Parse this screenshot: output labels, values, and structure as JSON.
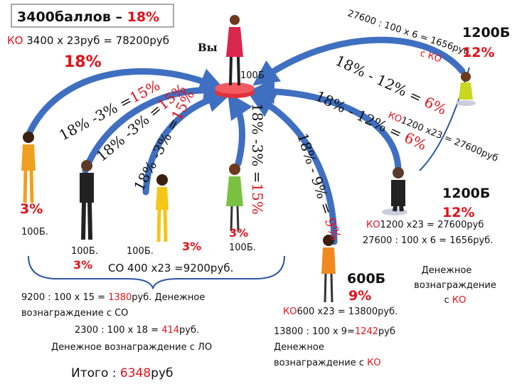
{
  "title": {
    "text": "3400баллов – ",
    "percent": "18%"
  },
  "you": {
    "label": "Вы",
    "points": "100Б"
  },
  "own_calc": {
    "ko": "КО",
    "text": " 3400 х 23руб = 78200руб",
    "percent": "18%"
  },
  "arrows": [
    {
      "calc": "18% -3% =",
      "result": "15%"
    },
    {
      "calc": "18% -3% =",
      "result": "15%"
    },
    {
      "calc": "18% -3% =",
      "result": "15%"
    },
    {
      "calc": "18% -3% =",
      "result": "15%"
    },
    {
      "calc": "18% - 9% = ",
      "result": "9%"
    },
    {
      "calc": "18% - 12% = ",
      "result": "6%"
    },
    {
      "calc": "18% - 12% = ",
      "result": "6%"
    }
  ],
  "top_right": {
    "calc": "27600 : 100 x 6 = 1656руб.",
    "note": "с КО",
    "points": "1200Б",
    "percent": "12%"
  },
  "ko_arrow": {
    "ko": "КО",
    "text": "1200 x23 = 27600руб"
  },
  "members": [
    {
      "percent": "3%",
      "points": "100Б."
    },
    {
      "points": "100Б.",
      "percent": "3%"
    },
    {
      "points": "100Б.",
      "percent": "3%"
    },
    {
      "percent": "3%",
      "points": "100Б."
    }
  ],
  "so_calc": "СО 400 х23 =9200руб.",
  "left_block": {
    "line1": {
      "a": "9200 : 100 x 15 = ",
      "b": "1380",
      "c": "руб. Денежное"
    },
    "line2": "вознаграждение с СО",
    "line3": {
      "a": "2300 : 100 x 18 = ",
      "b": "414",
      "c": "руб."
    },
    "line4": "Денежное вознаграждение с ЛО",
    "total": {
      "a": "Итого : ",
      "b": "6348",
      "c": "руб"
    }
  },
  "partner600": {
    "points": "600Б",
    "percent": "9%",
    "ko": "КО",
    "calc": "600 х23 = 13800руб.",
    "line1": {
      "a": "13800 : 100 x 9=",
      "b": "1242",
      "c": "руб"
    },
    "line2": "Денежное",
    "line3": "вознаграждение с ",
    "line3ko": "КО"
  },
  "partner1200": {
    "points": "1200Б",
    "percent": "12%",
    "ko": "КО",
    "calc": "1200 х23 = 27600руб",
    "calc2": "27600 : 100 х 6 = 1656руб.",
    "reward1": "Денежное",
    "reward2": "вознаграждение",
    "reward3": "с ",
    "reward3ko": "КО"
  }
}
